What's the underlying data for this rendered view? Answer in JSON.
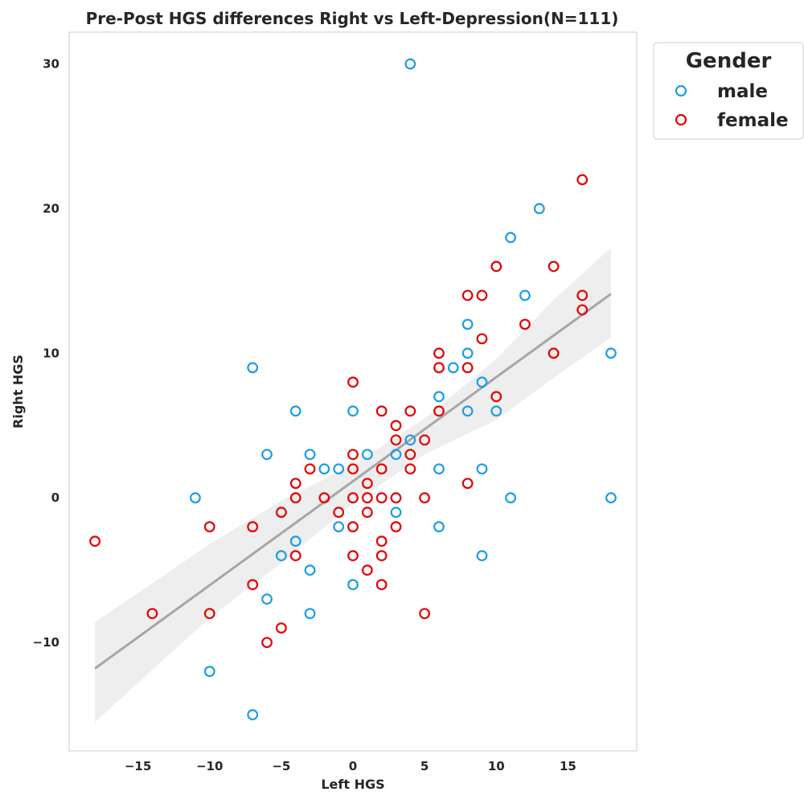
{
  "chart_data": {
    "type": "scatter",
    "title": "Pre-Post HGS differences Right vs Left-Depression(N=111)",
    "xlabel": "Left HGS",
    "ylabel": "Right HGS",
    "xlim": [
      -19.8,
      19.8
    ],
    "ylim": [
      -17.5,
      32.2
    ],
    "xticks": [
      -15,
      -10,
      -5,
      0,
      5,
      10,
      15
    ],
    "yticks": [
      -10,
      0,
      10,
      20,
      30
    ],
    "grid": false,
    "legend": {
      "title": "Gender",
      "placement": "outside-top-right"
    },
    "colors": {
      "male": "#1a9ee6",
      "female": "#e60000",
      "regression": "#a6a6a6",
      "ci": "#eeeeee"
    },
    "series": [
      {
        "name": "male",
        "points": [
          [
            4,
            30
          ],
          [
            13,
            20
          ],
          [
            11,
            18
          ],
          [
            12,
            14
          ],
          [
            8,
            12
          ],
          [
            8,
            10
          ],
          [
            18,
            10
          ],
          [
            7,
            9
          ],
          [
            -7,
            9
          ],
          [
            9,
            8
          ],
          [
            6,
            7
          ],
          [
            -4,
            6
          ],
          [
            0,
            6
          ],
          [
            8,
            6
          ],
          [
            10,
            6
          ],
          [
            4,
            4
          ],
          [
            -6,
            3
          ],
          [
            -3,
            3
          ],
          [
            1,
            3
          ],
          [
            3,
            3
          ],
          [
            -2,
            2
          ],
          [
            -1,
            2
          ],
          [
            6,
            2
          ],
          [
            9,
            2
          ],
          [
            -11,
            0
          ],
          [
            11,
            0
          ],
          [
            18,
            0
          ],
          [
            3,
            -1
          ],
          [
            -1,
            -2
          ],
          [
            6,
            -2
          ],
          [
            -4,
            -3
          ],
          [
            -5,
            -4
          ],
          [
            9,
            -4
          ],
          [
            -3,
            -5
          ],
          [
            0,
            -6
          ],
          [
            -6,
            -7
          ],
          [
            -3,
            -8
          ],
          [
            -10,
            -12
          ],
          [
            -7,
            -15
          ]
        ]
      },
      {
        "name": "female",
        "points": [
          [
            16,
            22
          ],
          [
            10,
            16
          ],
          [
            14,
            16
          ],
          [
            8,
            14
          ],
          [
            9,
            14
          ],
          [
            16,
            14
          ],
          [
            16,
            13
          ],
          [
            12,
            12
          ],
          [
            9,
            11
          ],
          [
            6,
            10
          ],
          [
            14,
            10
          ],
          [
            6,
            9
          ],
          [
            8,
            9
          ],
          [
            0,
            8
          ],
          [
            10,
            7
          ],
          [
            2,
            6
          ],
          [
            4,
            6
          ],
          [
            6,
            6
          ],
          [
            3,
            5
          ],
          [
            3,
            4
          ],
          [
            5,
            4
          ],
          [
            0,
            3
          ],
          [
            4,
            3
          ],
          [
            -3,
            2
          ],
          [
            0,
            2
          ],
          [
            2,
            2
          ],
          [
            4,
            2
          ],
          [
            -4,
            1
          ],
          [
            1,
            1
          ],
          [
            8,
            1
          ],
          [
            -4,
            0
          ],
          [
            -2,
            0
          ],
          [
            0,
            0
          ],
          [
            1,
            0
          ],
          [
            2,
            0
          ],
          [
            3,
            0
          ],
          [
            5,
            0
          ],
          [
            -5,
            -1
          ],
          [
            -1,
            -1
          ],
          [
            1,
            -1
          ],
          [
            -10,
            -2
          ],
          [
            -7,
            -2
          ],
          [
            0,
            -2
          ],
          [
            3,
            -2
          ],
          [
            2,
            -3
          ],
          [
            -18,
            -3
          ],
          [
            -4,
            -4
          ],
          [
            0,
            -4
          ],
          [
            2,
            -4
          ],
          [
            1,
            -5
          ],
          [
            -7,
            -6
          ],
          [
            2,
            -6
          ],
          [
            -14,
            -8
          ],
          [
            -10,
            -8
          ],
          [
            5,
            -8
          ],
          [
            -5,
            -9
          ],
          [
            -6,
            -10
          ]
        ]
      }
    ],
    "regression": {
      "x_range": [
        -18,
        18
      ],
      "line": [
        [
          -18,
          -11.8
        ],
        [
          18,
          14.1
        ]
      ],
      "ci_upper": [
        [
          -18,
          -8.6
        ],
        [
          -10,
          -3.2
        ],
        [
          -5,
          -0.2
        ],
        [
          0,
          2.3
        ],
        [
          5,
          5.5
        ],
        [
          10,
          9.6
        ],
        [
          14,
          13.7
        ],
        [
          18,
          17.3
        ]
      ],
      "ci_lower": [
        [
          -18,
          -15.5
        ],
        [
          -10,
          -8.3
        ],
        [
          -5,
          -4.5
        ],
        [
          0,
          -0.4
        ],
        [
          5,
          3.0
        ],
        [
          10,
          5.4
        ],
        [
          14,
          8.3
        ],
        [
          18,
          11.1
        ]
      ]
    }
  }
}
